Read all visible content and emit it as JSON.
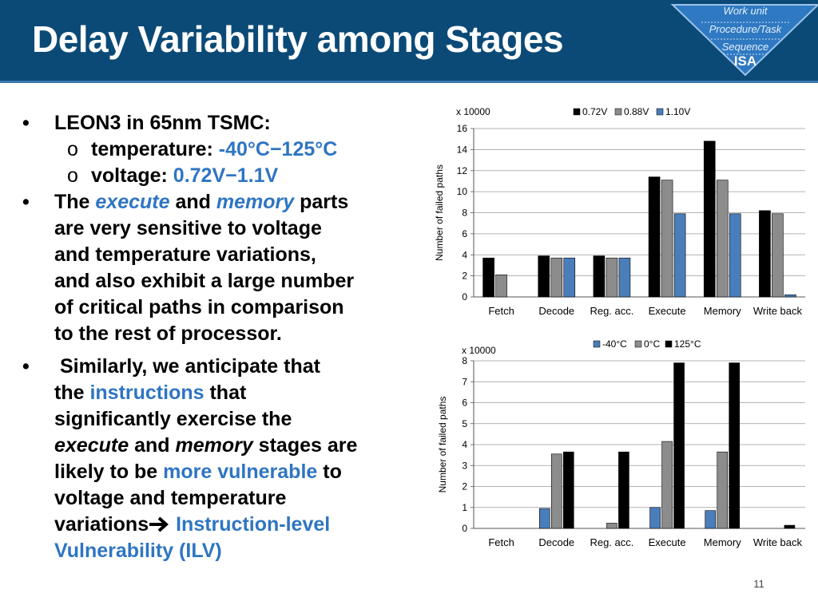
{
  "slide": {
    "title": "Delay Variability among Stages",
    "page_number": "11",
    "badge": {
      "line1": "Work unit",
      "line2": "Procedure/Task",
      "line3": "Sequence",
      "line4": "ISA"
    }
  },
  "bullets": {
    "b1": "LEON3 in 65nm TSMC:",
    "b1_sub1_label": "temperature: ",
    "b1_sub1_value": "-40°C−125°C",
    "b1_sub2_label": "voltage: ",
    "b1_sub2_value": "0.72V−1.1V",
    "b2_l1_a": "The ",
    "b2_l1_b": "execute",
    "b2_l1_c": " and ",
    "b2_l1_d": "memory",
    "b2_l1_e": " parts",
    "b2_l2": "are very sensitive to voltage",
    "b2_l3": "and temperature variations,",
    "b2_l4": "and also exhibit a large number",
    "b2_l5": "of critical paths in comparison",
    "b2_l6": "to the rest of processor.",
    "b3_l1": " Similarly, we anticipate that",
    "b3_l2_a": "the ",
    "b3_l2_b": "instructions",
    "b3_l2_c": " that",
    "b3_l3": "significantly exercise the",
    "b3_l4_a": "execute",
    "b3_l4_b": " and ",
    "b3_l4_c": "memory",
    "b3_l4_d": " stages are",
    "b3_l5_a": "likely to be ",
    "b3_l5_b": "more vulnerable",
    "b3_l5_c": " to",
    "b3_l6": "voltage and temperature",
    "b3_l7_a": "variations",
    "b3_l7_b": "Instruction-level",
    "b3_l8": "Vulnerability (ILV)"
  },
  "chart_data": [
    {
      "type": "bar",
      "multiplier": "x 10000",
      "ylabel": "Number of failed paths",
      "categories": [
        "Fetch",
        "Decode",
        "Reg. acc.",
        "Execute",
        "Memory",
        "Write back"
      ],
      "series": [
        {
          "name": "0.72V",
          "values": [
            3.7,
            3.9,
            3.9,
            11.4,
            14.8,
            8.2
          ],
          "color": "#000000"
        },
        {
          "name": "0.88V",
          "values": [
            2.1,
            3.7,
            3.7,
            11.1,
            11.1,
            7.9
          ],
          "color": "#8c8c8c"
        },
        {
          "name": "1.10V",
          "values": [
            0,
            3.7,
            3.7,
            7.9,
            7.9,
            0.2
          ],
          "color": "#4a7ebb"
        }
      ],
      "ylim": [
        0,
        16
      ],
      "yticks": [
        0,
        2,
        4,
        6,
        8,
        10,
        12,
        14,
        16
      ],
      "legend_position": "top-right",
      "grid": true
    },
    {
      "type": "bar",
      "multiplier": "x 10000",
      "ylabel": "Number of failed paths",
      "categories": [
        "Fetch",
        "Decode",
        "Reg. acc.",
        "Execute",
        "Memory",
        "Write back"
      ],
      "series": [
        {
          "name": "-40°C",
          "values": [
            0,
            0.95,
            0,
            1.0,
            0.85,
            0
          ],
          "color": "#4a7ebb"
        },
        {
          "name": "0°C",
          "values": [
            0,
            3.55,
            0.25,
            4.15,
            3.65,
            0
          ],
          "color": "#8c8c8c"
        },
        {
          "name": "125°C",
          "values": [
            0,
            3.65,
            3.65,
            7.9,
            7.9,
            0.15
          ],
          "color": "#000000"
        }
      ],
      "ylim": [
        0,
        8
      ],
      "yticks": [
        0,
        1,
        2,
        3,
        4,
        5,
        6,
        7,
        8
      ],
      "legend_position": "top-right",
      "grid": true
    }
  ]
}
